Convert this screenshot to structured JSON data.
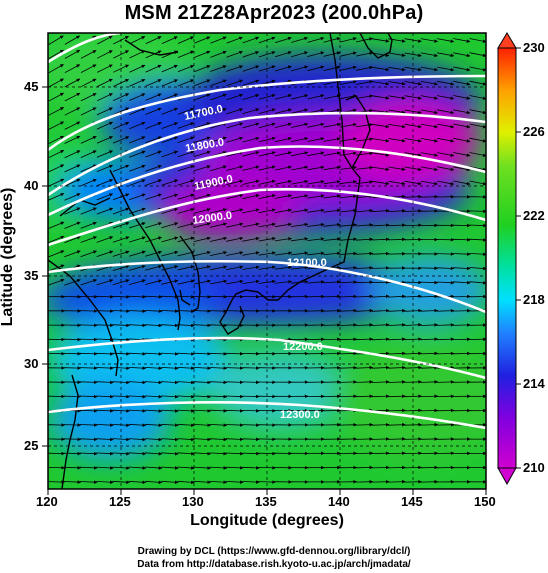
{
  "title": "MSM 21Z28Apr2023 (200.0hPa)",
  "axes": {
    "xlabel": "Longitude (degrees)",
    "ylabel": "Latitude  (degrees)",
    "xticks": [
      "120",
      "125",
      "130",
      "135",
      "140",
      "145",
      "150"
    ],
    "yticks": [
      "25",
      "30",
      "35",
      "40",
      "45"
    ],
    "xlim": [
      120,
      150
    ],
    "ylim": [
      22.4,
      47.6
    ]
  },
  "colorbar": {
    "labels": [
      "230",
      "226",
      "222",
      "218",
      "214",
      "210"
    ],
    "range": [
      210,
      230
    ],
    "colors": [
      "#d000d0",
      "#3030e0",
      "#00e0ff",
      "#20d020",
      "#e0f000",
      "#ff3000"
    ]
  },
  "contours": {
    "unit": "m",
    "labels": [
      "11700.0",
      "11800.0",
      "11900.0",
      "12000.0",
      "12100.0",
      "12200.0",
      "12300.0"
    ]
  },
  "credits": {
    "line1": "Drawing by DCL (https://www.gfd-dennou.org/library/dcl/)",
    "line2": "Data from http://database.rish.kyoto-u.ac.jp/arch/jmadata/"
  },
  "chart_data": {
    "type": "heatmap",
    "title": "MSM 21Z28Apr2023 (200.0hPa)",
    "xlabel": "Longitude (degrees)",
    "ylabel": "Latitude  (degrees)",
    "xlim": [
      120,
      150
    ],
    "ylim": [
      22.4,
      47.6
    ],
    "colorbar_range": [
      210,
      230
    ],
    "contour_levels": [
      11700,
      11800,
      11900,
      12000,
      12100,
      12200,
      12300
    ],
    "vector_field": "wind arrows, predominantly westerly"
  }
}
